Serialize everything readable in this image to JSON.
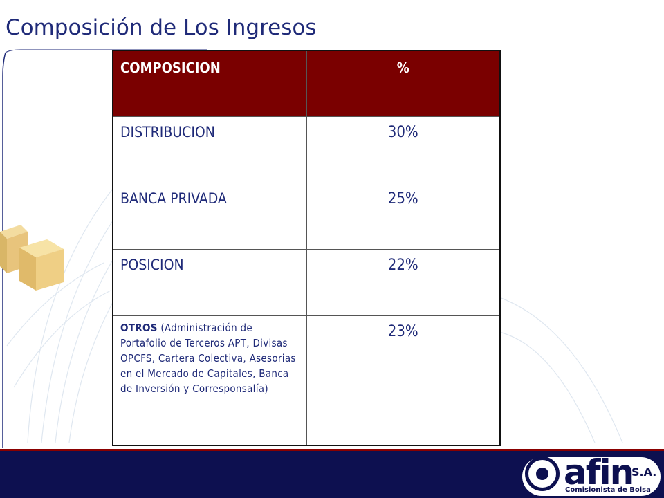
{
  "slide": {
    "title": "Composición de Los Ingresos"
  },
  "table": {
    "headers": [
      "COMPOSICION",
      "%"
    ],
    "rows": [
      {
        "category": "DISTRIBUCION",
        "percent": "30%"
      },
      {
        "category": "BANCA PRIVADA",
        "percent": "25%"
      },
      {
        "category": "POSICION",
        "percent": "22%"
      },
      {
        "category_strong": "OTROS",
        "category_detail": " (Administración de Portafolio de Terceros APT, Divisas OPCFS, Cartera Colectiva, Asesorias en el Mercado de Capitales, Banca de Inversión y Corresponsalía)",
        "percent": "23%"
      }
    ]
  },
  "logo": {
    "wordmark": "afin",
    "suffix": "S.A.",
    "tagline": "Comisionista de Bolsa"
  },
  "colors": {
    "header_bg": "#7a0000",
    "title_text": "#1f2a78",
    "footer_bg": "#0d1050",
    "footer_line": "#8a0000"
  }
}
